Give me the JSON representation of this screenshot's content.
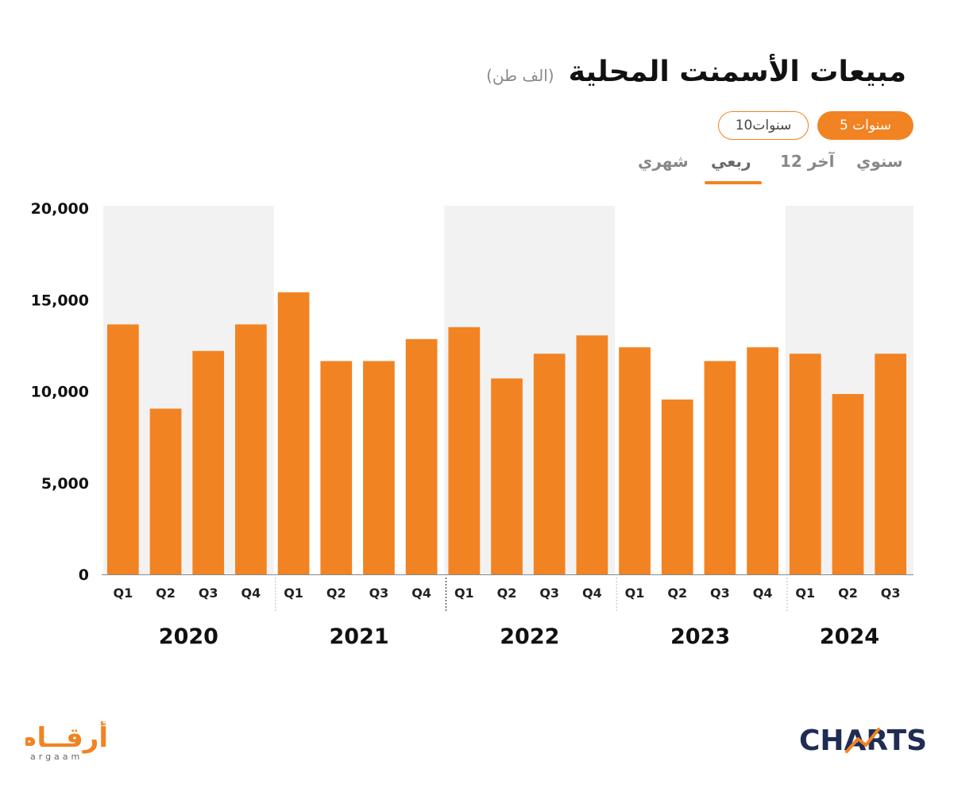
{
  "header": {
    "title": "مبيعات الأسمنت المحلية",
    "unit": "(الف طن)"
  },
  "range_buttons": {
    "five_years": "5 سنوات",
    "ten_years": "10سنوات"
  },
  "period_tabs": {
    "annual": "سنوي",
    "last12": "آخر 12",
    "quarterly": "ربعي",
    "monthly": "شهري"
  },
  "logos": {
    "argaam_arabic": "أرقــام",
    "argaam_latin": "argaam",
    "charts": "CHARTS"
  },
  "colors": {
    "bar": "#f28322",
    "band": "#f2f2f2",
    "accent": "#f28322",
    "charts_logo": "#1f2d55"
  },
  "chart_data": {
    "type": "bar",
    "categories": [
      "Q1",
      "Q2",
      "Q3",
      "Q4",
      "Q1",
      "Q2",
      "Q3",
      "Q4",
      "Q1",
      "Q2",
      "Q3",
      "Q4",
      "Q1",
      "Q2",
      "Q3",
      "Q4",
      "Q1",
      "Q2",
      "Q3"
    ],
    "years": [
      {
        "label": "2020",
        "quarters": 4
      },
      {
        "label": "2021",
        "quarters": 4
      },
      {
        "label": "2022",
        "quarters": 4
      },
      {
        "label": "2023",
        "quarters": 4
      },
      {
        "label": "2024",
        "quarters": 3
      }
    ],
    "values": [
      13650,
      9050,
      12200,
      13650,
      15400,
      11650,
      11650,
      12850,
      13500,
      10700,
      12050,
      13050,
      12400,
      9550,
      11650,
      12400,
      12050,
      9850,
      12050
    ],
    "yticks": [
      "0",
      "5,000",
      "10,000",
      "15,000",
      "20,000"
    ],
    "ylim": [
      0,
      20000
    ],
    "grid": false,
    "legend": "none"
  }
}
